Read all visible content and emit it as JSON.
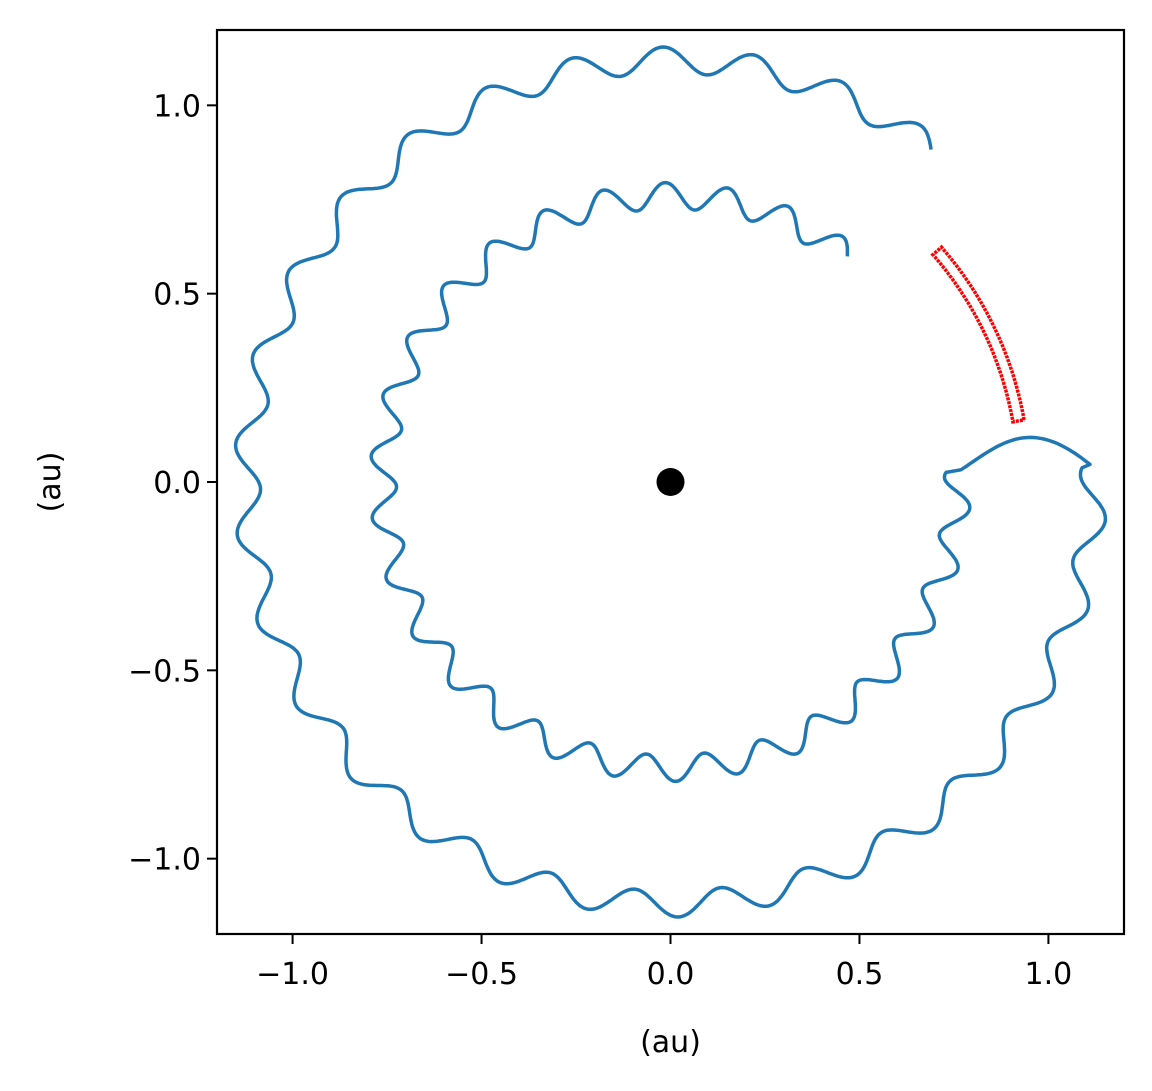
{
  "chart_data": {
    "type": "line",
    "title": "",
    "xlabel": "(au)",
    "ylabel": "(au)",
    "xlim": [
      -1.2,
      1.2
    ],
    "ylim": [
      -1.2,
      1.2
    ],
    "grid": false,
    "xticks": [
      {
        "value": -1.0,
        "label": "−1.0"
      },
      {
        "value": -0.5,
        "label": "−0.5"
      },
      {
        "value": 0.0,
        "label": "0.0"
      },
      {
        "value": 0.5,
        "label": "0.5"
      },
      {
        "value": 1.0,
        "label": "1.0"
      }
    ],
    "yticks": [
      {
        "value": -1.0,
        "label": "−1.0"
      },
      {
        "value": -0.5,
        "label": "−0.5"
      },
      {
        "value": 0.0,
        "label": "0.0"
      },
      {
        "value": 0.5,
        "label": "0.5"
      },
      {
        "value": 1.0,
        "label": "1.0"
      }
    ],
    "series": [
      {
        "color": "#1f77b4",
        "style": "line",
        "description_model": {
          "kind": "wavy_horseshoe",
          "center": [
            0.0,
            0.0
          ],
          "outer_radius": 1.12,
          "inner_radius": 0.76,
          "wave_amplitude": 0.035,
          "waves_per_turn": 30,
          "gap_start_angle_deg": 2,
          "gap_end_angle_deg": 52
        }
      },
      {
        "color": "#ff0000",
        "style": "dotted_loop",
        "description_model": {
          "kind": "narrow_arc_loop",
          "center": [
            0.0,
            0.0
          ],
          "radius_outer": 0.95,
          "radius_inner": 0.92,
          "angle_start_deg": 10,
          "angle_end_deg": 41
        }
      },
      {
        "color": "#000000",
        "style": "marker",
        "points": [
          [
            0.0,
            0.0
          ]
        ]
      }
    ]
  }
}
